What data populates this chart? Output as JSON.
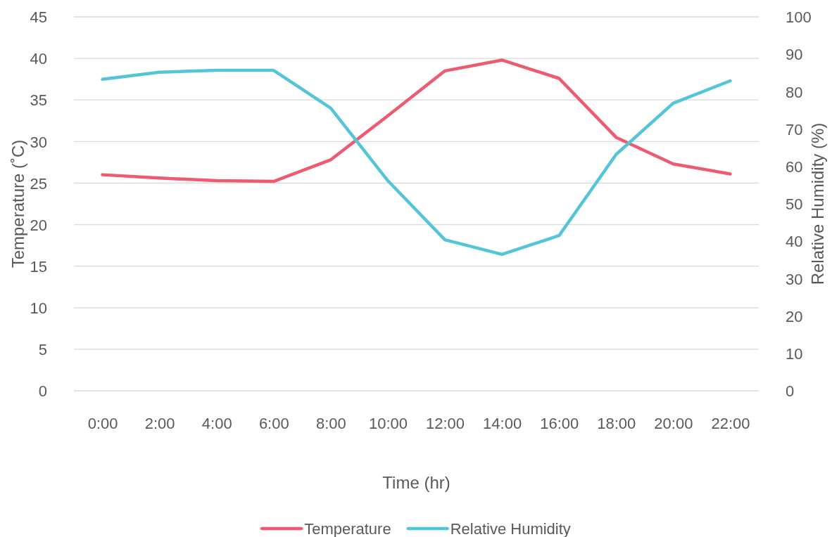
{
  "chart_data": {
    "type": "line",
    "xlabel": "Time (hr)",
    "ylabel": "Temperature (˚C)",
    "y2label": "Relative Humidity (%)",
    "categories": [
      "0:00",
      "2:00",
      "4:00",
      "6:00",
      "8:00",
      "10:00",
      "12:00",
      "14:00",
      "16:00",
      "18:00",
      "20:00",
      "22:00"
    ],
    "series": [
      {
        "name": "Temperature",
        "color": "#ee5a6f",
        "values": [
          26.0,
          25.6,
          25.3,
          25.2,
          27.8,
          33.1,
          38.5,
          39.8,
          37.6,
          30.5,
          27.3,
          26.1
        ]
      },
      {
        "name": "Relative Humidity",
        "color": "#54c4d8",
        "axis": "y2",
        "values": [
          83.3,
          85.2,
          85.7,
          85.7,
          75.6,
          56.2,
          40.4,
          36.5,
          41.5,
          63.2,
          76.9,
          82.9
        ]
      }
    ],
    "ylim": [
      0,
      45
    ],
    "yticks": [
      0,
      5,
      10,
      15,
      20,
      25,
      30,
      35,
      40,
      45
    ],
    "y2lim": [
      0,
      100
    ],
    "y2ticks": [
      0,
      10,
      20,
      30,
      40,
      50,
      60,
      70,
      80,
      90,
      100
    ],
    "grid": "y",
    "legend": "bottom",
    "marker": "none",
    "line_style": "solid"
  }
}
